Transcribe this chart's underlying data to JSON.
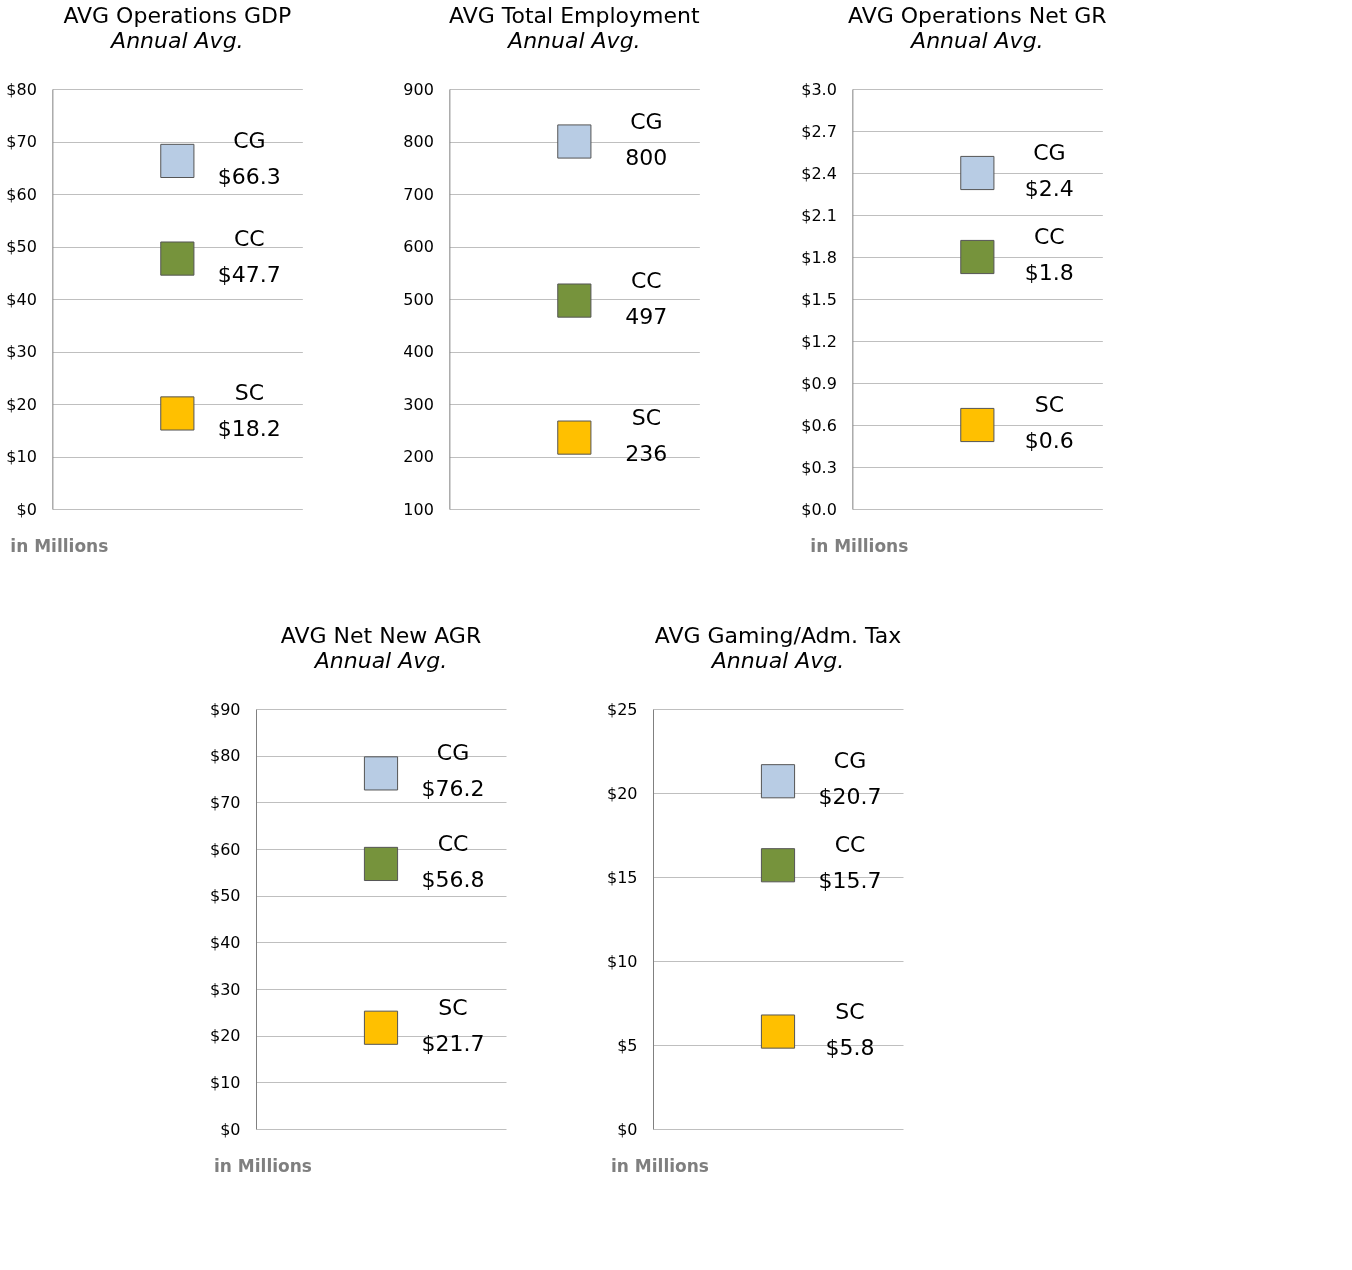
{
  "chart_data": [
    {
      "type": "scatter",
      "title": "AVG Operations GDP",
      "subtitle": "Annual Avg.",
      "categories": [
        null
      ],
      "marker": "square",
      "grid": "y",
      "ylim": [
        0,
        80
      ],
      "yticks": [
        {
          "value": 0,
          "label": "$0"
        },
        {
          "value": 10,
          "label": "$10"
        },
        {
          "value": 20,
          "label": "$20"
        },
        {
          "value": 30,
          "label": "$30"
        },
        {
          "value": 40,
          "label": "$40"
        },
        {
          "value": 50,
          "label": "$50"
        },
        {
          "value": 60,
          "label": "$60"
        },
        {
          "value": 70,
          "label": "$70"
        },
        {
          "value": 80,
          "label": "$80"
        }
      ],
      "annotations": [
        "in Millions"
      ],
      "series": [
        {
          "name": "CG",
          "color": "#b8cce4",
          "values": [
            66.3
          ],
          "value_labels": [
            "$66.3"
          ]
        },
        {
          "name": "CC",
          "color": "#76933c",
          "values": [
            47.7
          ],
          "value_labels": [
            "$47.7"
          ]
        },
        {
          "name": "SC",
          "color": "#ffc000",
          "values": [
            18.2
          ],
          "value_labels": [
            "$18.2"
          ]
        }
      ]
    },
    {
      "type": "scatter",
      "title": "AVG Total Employment",
      "subtitle": "Annual Avg.",
      "categories": [
        null
      ],
      "marker": "square",
      "grid": "y",
      "ylim": [
        100,
        900
      ],
      "yticks": [
        100,
        200,
        300,
        400,
        500,
        600,
        700,
        800,
        900
      ],
      "data_labels": true,
      "series": [
        {
          "name": "CG",
          "color": "#b8cce4",
          "values": [
            800
          ]
        },
        {
          "name": "CC",
          "color": "#76933c",
          "values": [
            497
          ]
        },
        {
          "name": "SC",
          "color": "#ffc000",
          "values": [
            236
          ]
        }
      ]
    },
    {
      "type": "scatter",
      "title": "AVG Operations Net GR",
      "subtitle": "Annual Avg.",
      "categories": [
        null
      ],
      "marker": "square",
      "grid": "y",
      "ylim": [
        0,
        3
      ],
      "yticks": [
        {
          "value": 0,
          "label": "$0.0"
        },
        {
          "value": 0.3,
          "label": "$0.3"
        },
        {
          "value": 0.6,
          "label": "$0.6"
        },
        {
          "value": 0.9,
          "label": "$0.9"
        },
        {
          "value": 1.2,
          "label": "$1.2"
        },
        {
          "value": 1.5,
          "label": "$1.5"
        },
        {
          "value": 1.8,
          "label": "$1.8"
        },
        {
          "value": 2.1,
          "label": "$2.1"
        },
        {
          "value": 2.4,
          "label": "$2.4"
        },
        {
          "value": 2.7,
          "label": "$2.7"
        },
        {
          "value": 3.0,
          "label": "$3.0"
        }
      ],
      "annotations": [
        "in Millions"
      ],
      "series": [
        {
          "name": "CG",
          "color": "#b8cce4",
          "values": [
            2.4
          ],
          "value_labels": [
            "$2.4"
          ]
        },
        {
          "name": "CC",
          "color": "#76933c",
          "values": [
            1.8
          ],
          "value_labels": [
            "$1.8"
          ]
        },
        {
          "name": "SC",
          "color": "#ffc000",
          "values": [
            0.6
          ],
          "value_labels": [
            "$0.6"
          ]
        }
      ]
    },
    {
      "type": "scatter",
      "title": "AVG Net New AGR",
      "subtitle": "Annual Avg.",
      "categories": [
        null
      ],
      "marker": "square",
      "grid": "y",
      "ylim": [
        0,
        90
      ],
      "yticks": [
        {
          "value": 0,
          "label": "$0"
        },
        {
          "value": 10,
          "label": "$10"
        },
        {
          "value": 20,
          "label": "$20"
        },
        {
          "value": 30,
          "label": "$30"
        },
        {
          "value": 40,
          "label": "$40"
        },
        {
          "value": 50,
          "label": "$50"
        },
        {
          "value": 60,
          "label": "$60"
        },
        {
          "value": 70,
          "label": "$70"
        },
        {
          "value": 80,
          "label": "$80"
        },
        {
          "value": 90,
          "label": "$90"
        }
      ],
      "annotations": [
        "in Millions"
      ],
      "series": [
        {
          "name": "CG",
          "color": "#b8cce4",
          "values": [
            76.2
          ],
          "value_labels": [
            "$76.2"
          ]
        },
        {
          "name": "CC",
          "color": "#76933c",
          "values": [
            56.8
          ],
          "value_labels": [
            "$56.8"
          ]
        },
        {
          "name": "SC",
          "color": "#ffc000",
          "values": [
            21.7
          ],
          "value_labels": [
            "$21.7"
          ]
        }
      ]
    },
    {
      "type": "scatter",
      "title": "AVG Gaming/Adm. Tax",
      "subtitle": "Annual Avg.",
      "categories": [
        null
      ],
      "marker": "square",
      "grid": "y",
      "ylim": [
        0,
        25
      ],
      "yticks": [
        {
          "value": 0,
          "label": "$0"
        },
        {
          "value": 5,
          "label": "$5"
        },
        {
          "value": 10,
          "label": "$10"
        },
        {
          "value": 15,
          "label": "$15"
        },
        {
          "value": 20,
          "label": "$20"
        },
        {
          "value": 25,
          "label": "$25"
        }
      ],
      "annotations": [
        "in Millions"
      ],
      "series": [
        {
          "name": "CG",
          "color": "#b8cce4",
          "values": [
            20.7
          ],
          "value_labels": [
            "$20.7"
          ]
        },
        {
          "name": "CC",
          "color": "#76933c",
          "values": [
            15.7
          ],
          "value_labels": [
            "$15.7"
          ]
        },
        {
          "name": "SC",
          "color": "#ffc000",
          "values": [
            5.8
          ],
          "value_labels": [
            "$5.8"
          ]
        }
      ]
    }
  ]
}
